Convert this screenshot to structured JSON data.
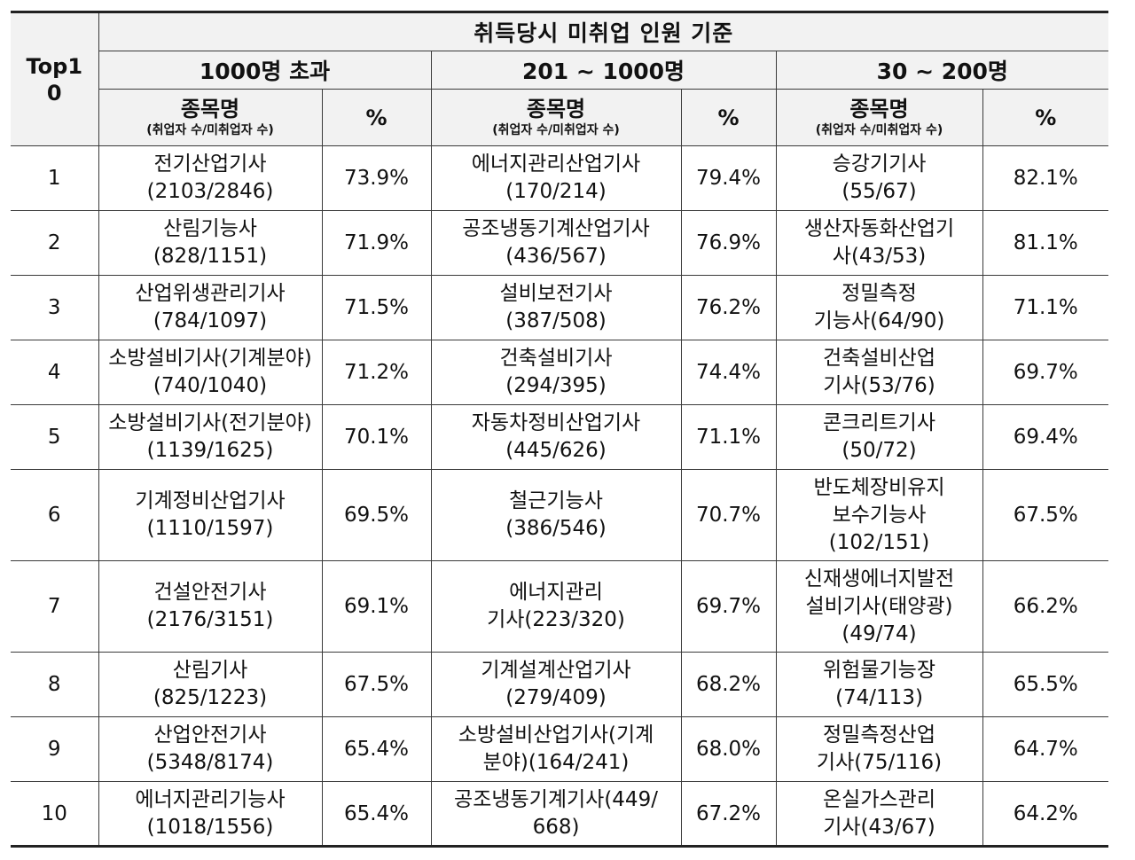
{
  "table": {
    "corner": "Top10",
    "title": "취득당시 미취업 인원 기준",
    "groups": [
      "1000명 초과",
      "201 ~ 1000명",
      "30 ~ 200명"
    ],
    "col_name_main": "종목명",
    "col_name_sub": "(취업자 수/미취업자 수)",
    "col_pct": "%",
    "rows": [
      {
        "rank": "1",
        "a_lines": [
          "전기산업기사",
          "(2103/2846)"
        ],
        "a_pct": "73.9%",
        "b_lines": [
          "에너지관리산업기사",
          "(170/214)"
        ],
        "b_pct": "79.4%",
        "c_lines": [
          "승강기기사",
          "(55/67)"
        ],
        "c_pct": "82.1%"
      },
      {
        "rank": "2",
        "a_lines": [
          "산림기능사",
          "(828/1151)"
        ],
        "a_pct": "71.9%",
        "b_lines": [
          "공조냉동기계산업기사",
          "(436/567)"
        ],
        "b_pct": "76.9%",
        "c_lines": [
          "생산자동화산업기",
          "사(43/53)"
        ],
        "c_pct": "81.1%"
      },
      {
        "rank": "3",
        "a_lines": [
          "산업위생관리기사",
          "(784/1097)"
        ],
        "a_pct": "71.5%",
        "b_lines": [
          "설비보전기사",
          "(387/508)"
        ],
        "b_pct": "76.2%",
        "c_lines": [
          "정밀측정",
          "기능사(64/90)"
        ],
        "c_pct": "71.1%"
      },
      {
        "rank": "4",
        "a_lines": [
          "소방설비기사(기계분야)",
          "(740/1040)"
        ],
        "a_pct": "71.2%",
        "b_lines": [
          "건축설비기사",
          "(294/395)"
        ],
        "b_pct": "74.4%",
        "c_lines": [
          "건축설비산업",
          "기사(53/76)"
        ],
        "c_pct": "69.7%"
      },
      {
        "rank": "5",
        "a_lines": [
          "소방설비기사(전기분야)",
          "(1139/1625)"
        ],
        "a_pct": "70.1%",
        "b_lines": [
          "자동차정비산업기사",
          "(445/626)"
        ],
        "b_pct": "71.1%",
        "c_lines": [
          "콘크리트기사",
          "(50/72)"
        ],
        "c_pct": "69.4%"
      },
      {
        "rank": "6",
        "a_lines": [
          "기계정비산업기사",
          "(1110/1597)"
        ],
        "a_pct": "69.5%",
        "b_lines": [
          "철근기능사",
          "(386/546)"
        ],
        "b_pct": "70.7%",
        "c_lines": [
          "반도체장비유지",
          "보수기능사",
          "(102/151)"
        ],
        "c_pct": "67.5%"
      },
      {
        "rank": "7",
        "a_lines": [
          "건설안전기사",
          "(2176/3151)"
        ],
        "a_pct": "69.1%",
        "b_lines": [
          "에너지관리",
          "기사(223/320)"
        ],
        "b_pct": "69.7%",
        "c_lines": [
          "신재생에너지발전",
          "설비기사(태양광)",
          "(49/74)"
        ],
        "c_pct": "66.2%"
      },
      {
        "rank": "8",
        "a_lines": [
          "산림기사",
          "(825/1223)"
        ],
        "a_pct": "67.5%",
        "b_lines": [
          "기계설계산업기사",
          "(279/409)"
        ],
        "b_pct": "68.2%",
        "c_lines": [
          "위험물기능장",
          "(74/113)"
        ],
        "c_pct": "65.5%"
      },
      {
        "rank": "9",
        "a_lines": [
          "산업안전기사",
          "(5348/8174)"
        ],
        "a_pct": "65.4%",
        "b_lines": [
          "소방설비산업기사(기계",
          "분야)(164/241)"
        ],
        "b_pct": "68.0%",
        "c_lines": [
          "정밀측정산업",
          "기사(75/116)"
        ],
        "c_pct": "64.7%"
      },
      {
        "rank": "10",
        "a_lines": [
          "에너지관리기능사",
          "(1018/1556)"
        ],
        "a_pct": "65.4%",
        "b_lines": [
          "공조냉동기계기사(449/",
          "668)"
        ],
        "b_pct": "67.2%",
        "c_lines": [
          "온실가스관리",
          "기사(43/67)"
        ],
        "c_pct": "64.2%"
      }
    ]
  }
}
